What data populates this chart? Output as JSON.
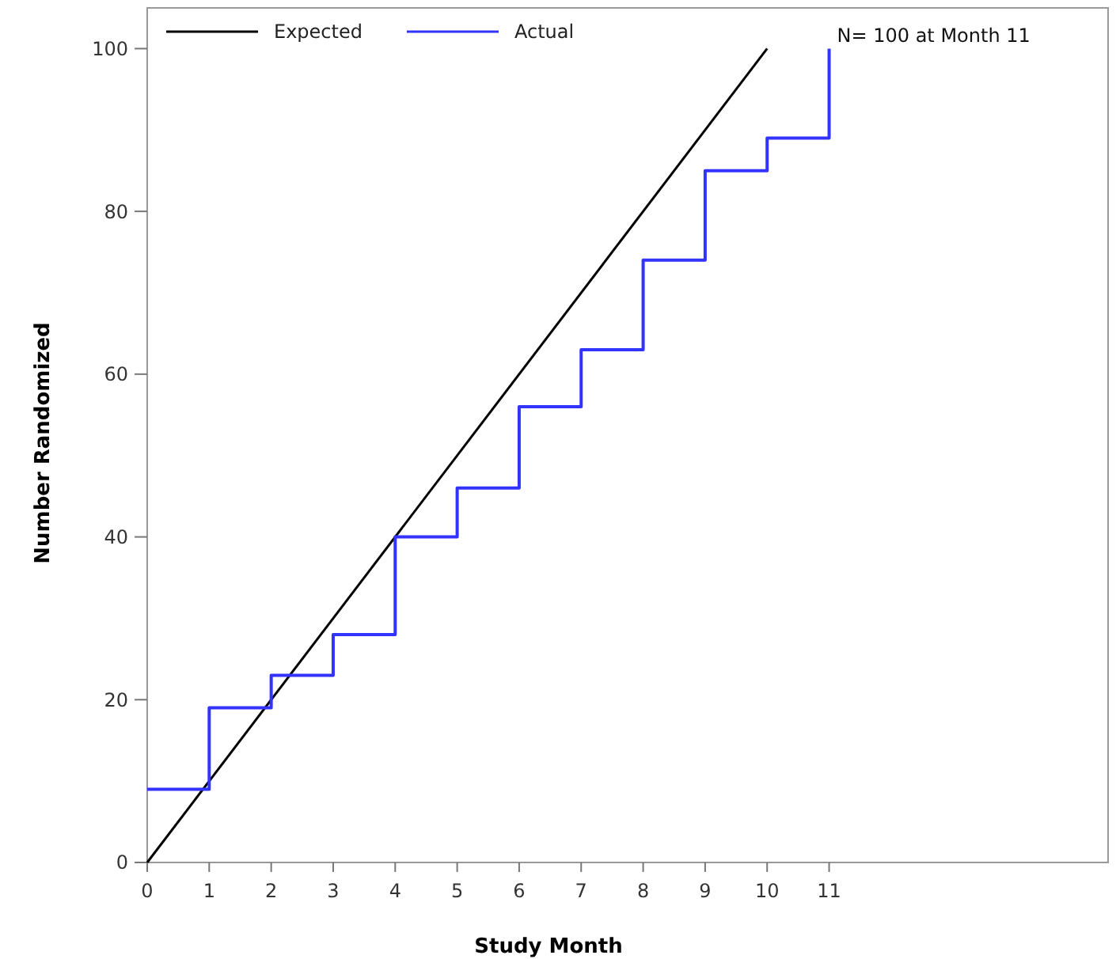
{
  "chart_data": {
    "type": "line",
    "xlabel": "Study Month",
    "ylabel": "Number Randomized",
    "xlim": [
      0,
      15.5
    ],
    "xticks": [
      0,
      1,
      2,
      3,
      4,
      5,
      6,
      7,
      8,
      9,
      10,
      11
    ],
    "ylim": [
      0,
      105
    ],
    "yticks": [
      0,
      20,
      40,
      60,
      80,
      100
    ],
    "series": [
      {
        "name": "Expected",
        "color": "#000000",
        "x": [
          0,
          10
        ],
        "values": [
          0,
          100
        ]
      },
      {
        "name": "Actual",
        "color": "#3333ff",
        "type": "step",
        "x": [
          0,
          1,
          2,
          3,
          4,
          5,
          6,
          7,
          8,
          9,
          10,
          11
        ],
        "values": [
          9,
          19,
          23,
          28,
          40,
          46,
          56,
          63,
          74,
          85,
          89,
          100
        ]
      }
    ],
    "annotations": [
      {
        "text": "N= 100 at Month  11",
        "x": 11,
        "y": 100
      }
    ],
    "legend": "top left",
    "grid": false
  }
}
